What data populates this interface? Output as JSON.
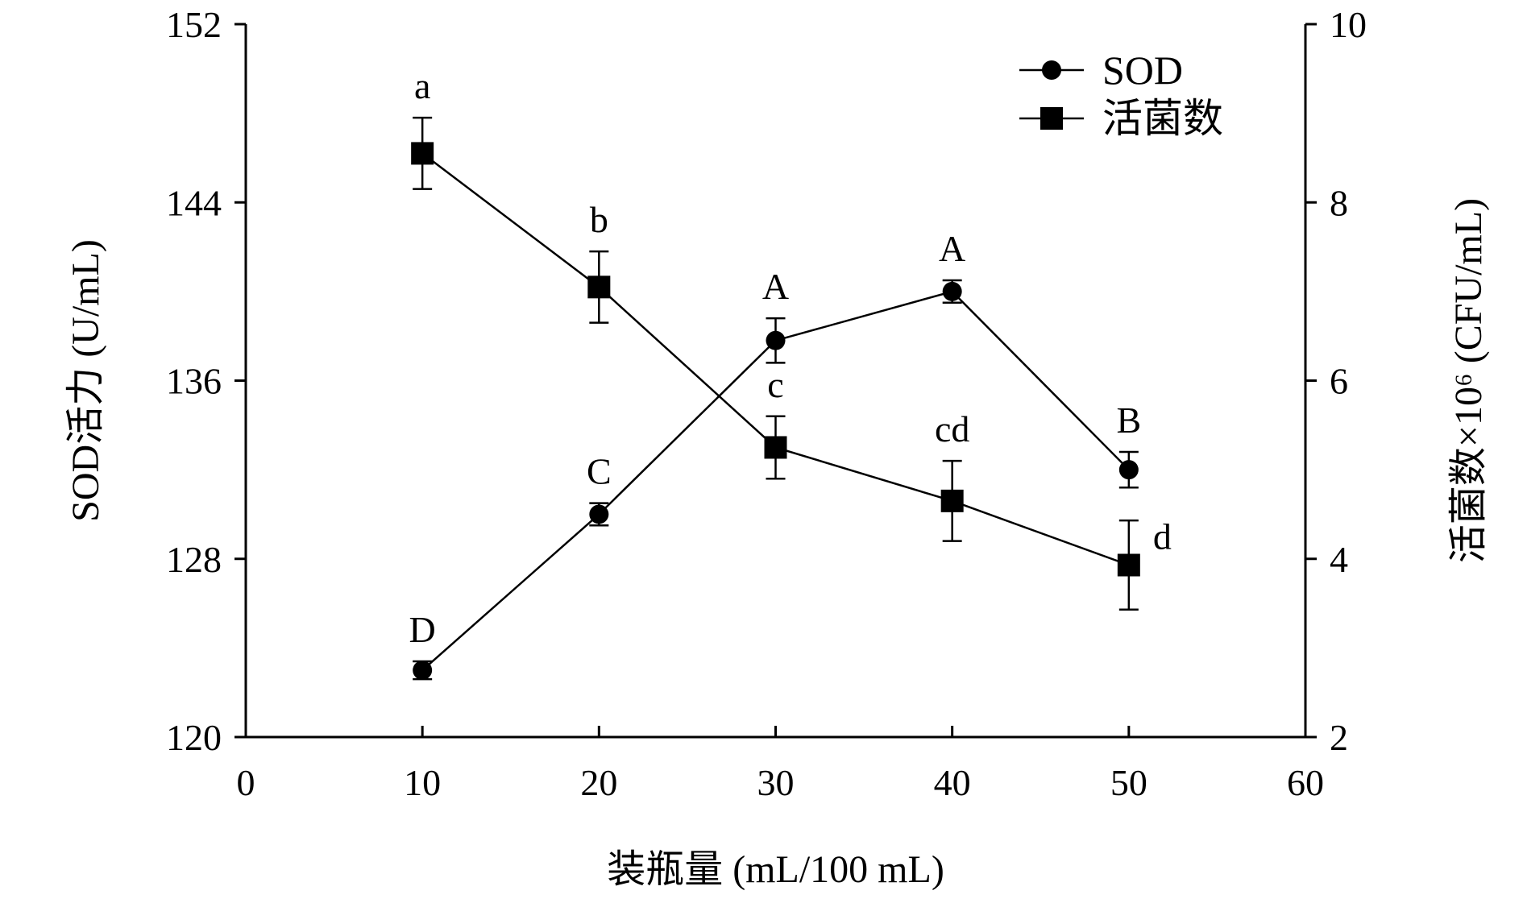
{
  "chart_data": {
    "type": "line",
    "x": [
      10,
      20,
      30,
      40,
      50
    ],
    "xlabel": "装瓶量 (mL/100 mL)",
    "xlim": [
      0,
      60
    ],
    "xticks": [
      "0",
      "10",
      "20",
      "30",
      "40",
      "50",
      "60"
    ],
    "ylabel_left": "SOD活力 (U/mL)",
    "ylim_left": [
      120,
      152
    ],
    "yticks_left": [
      "120",
      "128",
      "136",
      "144",
      "152"
    ],
    "ylabel_right": "活菌数×10⁶ (CFU/mL)",
    "ylim_right": [
      2,
      10
    ],
    "yticks_right": [
      "2",
      "4",
      "6",
      "8",
      "10"
    ],
    "grid": false,
    "legend_position": "top-right",
    "series": [
      {
        "name": "SOD",
        "axis": "left",
        "marker": "circle",
        "values": [
          123.0,
          130.0,
          137.8,
          140.0,
          132.0
        ],
        "errors": [
          0.4,
          0.5,
          1.0,
          0.5,
          0.8
        ],
        "labels": [
          "D",
          "C",
          "A",
          "A",
          "B"
        ]
      },
      {
        "name": "活菌数",
        "axis": "right",
        "marker": "square",
        "values": [
          8.55,
          7.05,
          5.25,
          4.65,
          3.93
        ],
        "errors": [
          0.4,
          0.4,
          0.35,
          0.45,
          0.5
        ],
        "labels": [
          "a",
          "b",
          "c",
          "cd",
          "d"
        ]
      }
    ]
  }
}
